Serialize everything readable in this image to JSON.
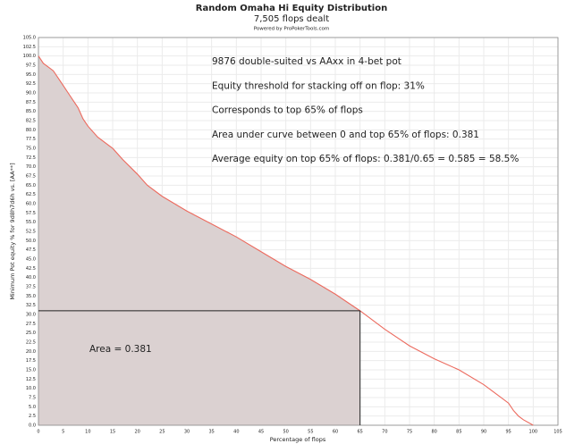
{
  "chart_data": {
    "type": "line",
    "title": "Random Omaha Hi Equity Distribution",
    "subtitle": "7,505 flops dealt",
    "credit": "Powered by ProPokerTools.com",
    "x_label": "Percentage of flops",
    "y_label": "Minimum Pot equity % for 9d8h7d6h vs. [AA**]",
    "annotations": [
      "9876 double-suited vs AAxx in 4-bet pot",
      "Equity threshold for stacking off on flop: 31%",
      "Corresponds to top 65% of flops",
      "Area under curve between 0 and top 65% of flops: 0.381",
      "Average equity on top 65% of flops: 0.381/0.65 = 0.585 = 58.5%"
    ],
    "area_label": "Area = 0.381",
    "threshold_x": 65,
    "threshold_y": 31,
    "x": [
      0,
      1,
      2,
      3,
      4,
      5,
      6,
      7,
      8,
      9,
      10,
      12,
      15,
      17,
      20,
      22,
      25,
      30,
      35,
      40,
      45,
      50,
      55,
      60,
      65,
      70,
      75,
      80,
      85,
      90,
      93,
      95,
      96,
      97,
      98,
      100
    ],
    "series": [
      {
        "name": "equity",
        "color": "#ec6a5e",
        "values": [
          100,
          98,
          97,
          96,
          94,
          92,
          90,
          88,
          86,
          83,
          81,
          78,
          75,
          72,
          68,
          65,
          62,
          58,
          54.5,
          51,
          47,
          43,
          39.5,
          35.5,
          31,
          26,
          21.5,
          18,
          15,
          11,
          8,
          6,
          4,
          2.5,
          1.5,
          0
        ]
      }
    ],
    "area_color": "#dbd1d1",
    "xlim": [
      0,
      105
    ],
    "ylim": [
      0,
      105
    ],
    "xticks": [
      0,
      5,
      10,
      15,
      20,
      25,
      30,
      35,
      40,
      45,
      50,
      55,
      60,
      65,
      70,
      75,
      80,
      85,
      90,
      95,
      100,
      105
    ],
    "yticks": [
      {
        "value": 0,
        "label": "0.0"
      },
      {
        "value": 2.5,
        "label": "2.5"
      },
      {
        "value": 5,
        "label": "5.0"
      },
      {
        "value": 7.5,
        "label": "7.5"
      },
      {
        "value": 10,
        "label": "10.0"
      },
      {
        "value": 12.5,
        "label": "12.5"
      },
      {
        "value": 15,
        "label": "15.0"
      },
      {
        "value": 17.5,
        "label": "17.5"
      },
      {
        "value": 20,
        "label": "20.0"
      },
      {
        "value": 22.5,
        "label": "22.5"
      },
      {
        "value": 25,
        "label": "25.0"
      },
      {
        "value": 27.5,
        "label": "27.5"
      },
      {
        "value": 30,
        "label": "30.0"
      },
      {
        "value": 32.5,
        "label": "32.5"
      },
      {
        "value": 35,
        "label": "35.0"
      },
      {
        "value": 37.5,
        "label": "37.5"
      },
      {
        "value": 40,
        "label": "40.0"
      },
      {
        "value": 42.5,
        "label": "42.5"
      },
      {
        "value": 45,
        "label": "45.0"
      },
      {
        "value": 47.5,
        "label": "47.5"
      },
      {
        "value": 50,
        "label": "50.0"
      },
      {
        "value": 52.5,
        "label": "52.5"
      },
      {
        "value": 55,
        "label": "55.0"
      },
      {
        "value": 57.5,
        "label": "57.5"
      },
      {
        "value": 60,
        "label": "60.0"
      },
      {
        "value": 62.5,
        "label": "62.5"
      },
      {
        "value": 65,
        "label": "65.0"
      },
      {
        "value": 67.5,
        "label": "67.5"
      },
      {
        "value": 70,
        "label": "70.0"
      },
      {
        "value": 72.5,
        "label": "72.5"
      },
      {
        "value": 75,
        "label": "75.0"
      },
      {
        "value": 77.5,
        "label": "77.5"
      },
      {
        "value": 80,
        "label": "80.0"
      },
      {
        "value": 82.5,
        "label": "82.5"
      },
      {
        "value": 85,
        "label": "85.0"
      },
      {
        "value": 87.5,
        "label": "87.5"
      },
      {
        "value": 90,
        "label": "90.0"
      },
      {
        "value": 92.5,
        "label": "92.5"
      },
      {
        "value": 95,
        "label": "95.0"
      },
      {
        "value": 97.5,
        "label": "97.5"
      },
      {
        "value": 100,
        "label": "100.0"
      },
      {
        "value": 102.5,
        "label": "102.5"
      },
      {
        "value": 105,
        "label": "105.0"
      }
    ],
    "grid": true
  }
}
